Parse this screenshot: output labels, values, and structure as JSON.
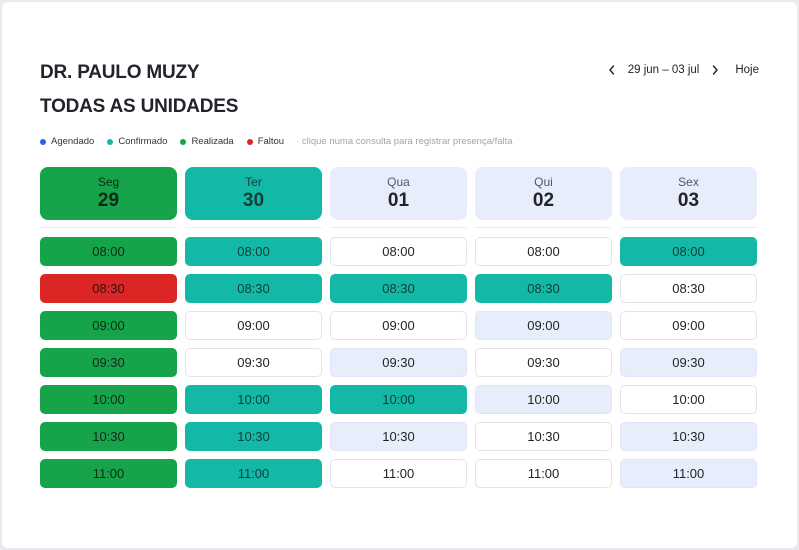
{
  "doctor": "DR. PAULO MUZY",
  "unit": "TODAS AS UNIDADES",
  "nav": {
    "prev_icon": "chevron-left",
    "range": "29 jun – 03 jul",
    "next_icon": "chevron-right",
    "today": "Hoje"
  },
  "legend": {
    "items": [
      {
        "label": "Agendado",
        "color": "#2563eb"
      },
      {
        "label": "Confirmado",
        "color": "#14b8a6"
      },
      {
        "label": "Realizada",
        "color": "#16a34a"
      },
      {
        "label": "Faltou",
        "color": "#dc2626"
      }
    ],
    "hint": "· clique numa consulta para  registrar presença/falta"
  },
  "days": [
    {
      "name": "Seg",
      "num": "29",
      "status": "realizada",
      "slots": [
        {
          "time": "08:00",
          "status": "realizada"
        },
        {
          "time": "08:30",
          "status": "faltou"
        },
        {
          "time": "09:00",
          "status": "realizada"
        },
        {
          "time": "09:30",
          "status": "realizada"
        },
        {
          "time": "10:00",
          "status": "realizada"
        },
        {
          "time": "10:30",
          "status": "realizada"
        },
        {
          "time": "11:00",
          "status": "realizada"
        }
      ]
    },
    {
      "name": "Ter",
      "num": "30",
      "status": "confirmado",
      "slots": [
        {
          "time": "08:00",
          "status": "confirmado"
        },
        {
          "time": "08:30",
          "status": "confirmado"
        },
        {
          "time": "09:00",
          "status": "livre"
        },
        {
          "time": "09:30",
          "status": "livre"
        },
        {
          "time": "10:00",
          "status": "confirmado"
        },
        {
          "time": "10:30",
          "status": "confirmado"
        },
        {
          "time": "11:00",
          "status": "confirmado"
        }
      ]
    },
    {
      "name": "Qua",
      "num": "01",
      "status": "livre",
      "slots": [
        {
          "time": "08:00",
          "status": "livre"
        },
        {
          "time": "08:30",
          "status": "confirmado"
        },
        {
          "time": "09:00",
          "status": "livre"
        },
        {
          "time": "09:30",
          "status": "agendado"
        },
        {
          "time": "10:00",
          "status": "confirmado"
        },
        {
          "time": "10:30",
          "status": "agendado"
        },
        {
          "time": "11:00",
          "status": "livre"
        }
      ]
    },
    {
      "name": "Qui",
      "num": "02",
      "status": "livre",
      "slots": [
        {
          "time": "08:00",
          "status": "livre"
        },
        {
          "time": "08:30",
          "status": "confirmado"
        },
        {
          "time": "09:00",
          "status": "agendado"
        },
        {
          "time": "09:30",
          "status": "livre"
        },
        {
          "time": "10:00",
          "status": "agendado"
        },
        {
          "time": "10:30",
          "status": "livre"
        },
        {
          "time": "11:00",
          "status": "livre"
        }
      ]
    },
    {
      "name": "Sex",
      "num": "03",
      "status": "livre",
      "slots": [
        {
          "time": "08:00",
          "status": "confirmado"
        },
        {
          "time": "08:30",
          "status": "livre"
        },
        {
          "time": "09:00",
          "status": "livre"
        },
        {
          "time": "09:30",
          "status": "agendado"
        },
        {
          "time": "10:00",
          "status": "livre"
        },
        {
          "time": "10:30",
          "status": "agendado"
        },
        {
          "time": "11:00",
          "status": "agendado"
        }
      ]
    }
  ]
}
